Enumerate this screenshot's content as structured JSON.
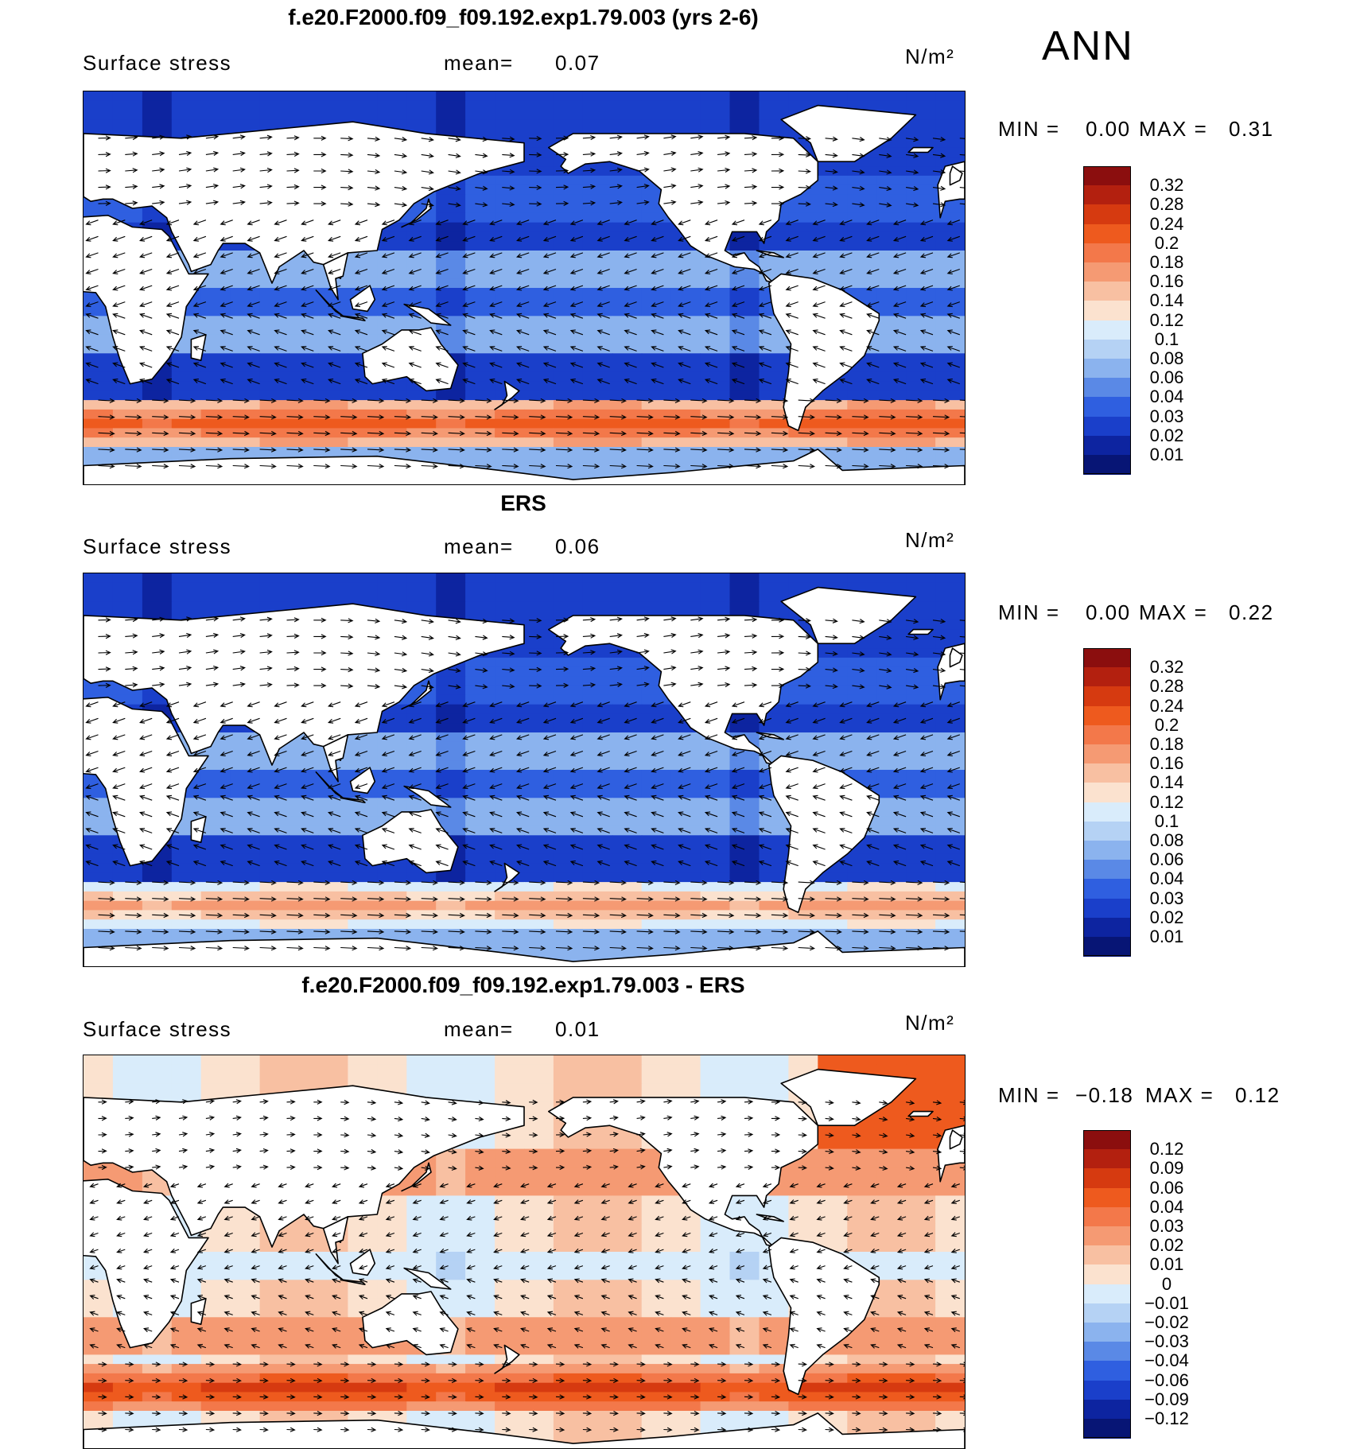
{
  "season": "ANN",
  "units": "N/m²",
  "panels": [
    {
      "title": "f.e20.F2000.f09_f09.192.exp1.79.003 (yrs 2-6)",
      "variable": "Surface stress",
      "mean_label": "mean=",
      "mean_value": "0.07",
      "min_label": "MIN =",
      "min_value": "0.00",
      "max_label": "MAX =",
      "max_value": "0.31",
      "scheme": "abs",
      "colorbar_levels": [
        "0.32",
        "0.28",
        "0.24",
        "0.2",
        "0.18",
        "0.16",
        "0.14",
        "0.12",
        "0.1",
        "0.08",
        "0.06",
        "0.04",
        "0.03",
        "0.02",
        "0.01"
      ]
    },
    {
      "title": "ERS",
      "variable": "Surface stress",
      "mean_label": "mean=",
      "mean_value": "0.06",
      "min_label": "MIN =",
      "min_value": "0.00",
      "max_label": "MAX =",
      "max_value": "0.22",
      "scheme": "abs",
      "colorbar_levels": [
        "0.32",
        "0.28",
        "0.24",
        "0.2",
        "0.18",
        "0.16",
        "0.14",
        "0.12",
        "0.1",
        "0.08",
        "0.06",
        "0.04",
        "0.03",
        "0.02",
        "0.01"
      ]
    },
    {
      "title": "f.e20.F2000.f09_f09.192.exp1.79.003 - ERS",
      "variable": "Surface stress",
      "mean_label": "mean=",
      "mean_value": "0.01",
      "min_label": "MIN =",
      "min_value": "−0.18",
      "max_label": "MAX =",
      "max_value": "0.12",
      "scheme": "diff",
      "colorbar_levels": [
        "0.12",
        "0.09",
        "0.06",
        "0.04",
        "0.03",
        "0.02",
        "0.01",
        "0",
        "−0.01",
        "−0.02",
        "−0.03",
        "−0.04",
        "−0.06",
        "−0.09",
        "−0.12"
      ]
    }
  ],
  "colors": {
    "abs": [
      "#8b0e0e",
      "#b3200f",
      "#d63a10",
      "#ee5a1e",
      "#f3784a",
      "#f59a73",
      "#f8c0a2",
      "#fbe2cf",
      "#d9ecfb",
      "#b5d2f4",
      "#8bb3ee",
      "#5a89e6",
      "#2f5fe0",
      "#1a3fca",
      "#0d24a0",
      "#071575"
    ],
    "diff": [
      "#8b0e0e",
      "#b3200f",
      "#d63a10",
      "#ee5a1e",
      "#f3784a",
      "#f59a73",
      "#f8c0a2",
      "#fbe2cf",
      "#d9ecfb",
      "#b5d2f4",
      "#8bb3ee",
      "#5a89e6",
      "#2f5fe0",
      "#1a3fca",
      "#0d24a0",
      "#071575"
    ],
    "land": "#ffffff",
    "coast": "#000000"
  }
}
